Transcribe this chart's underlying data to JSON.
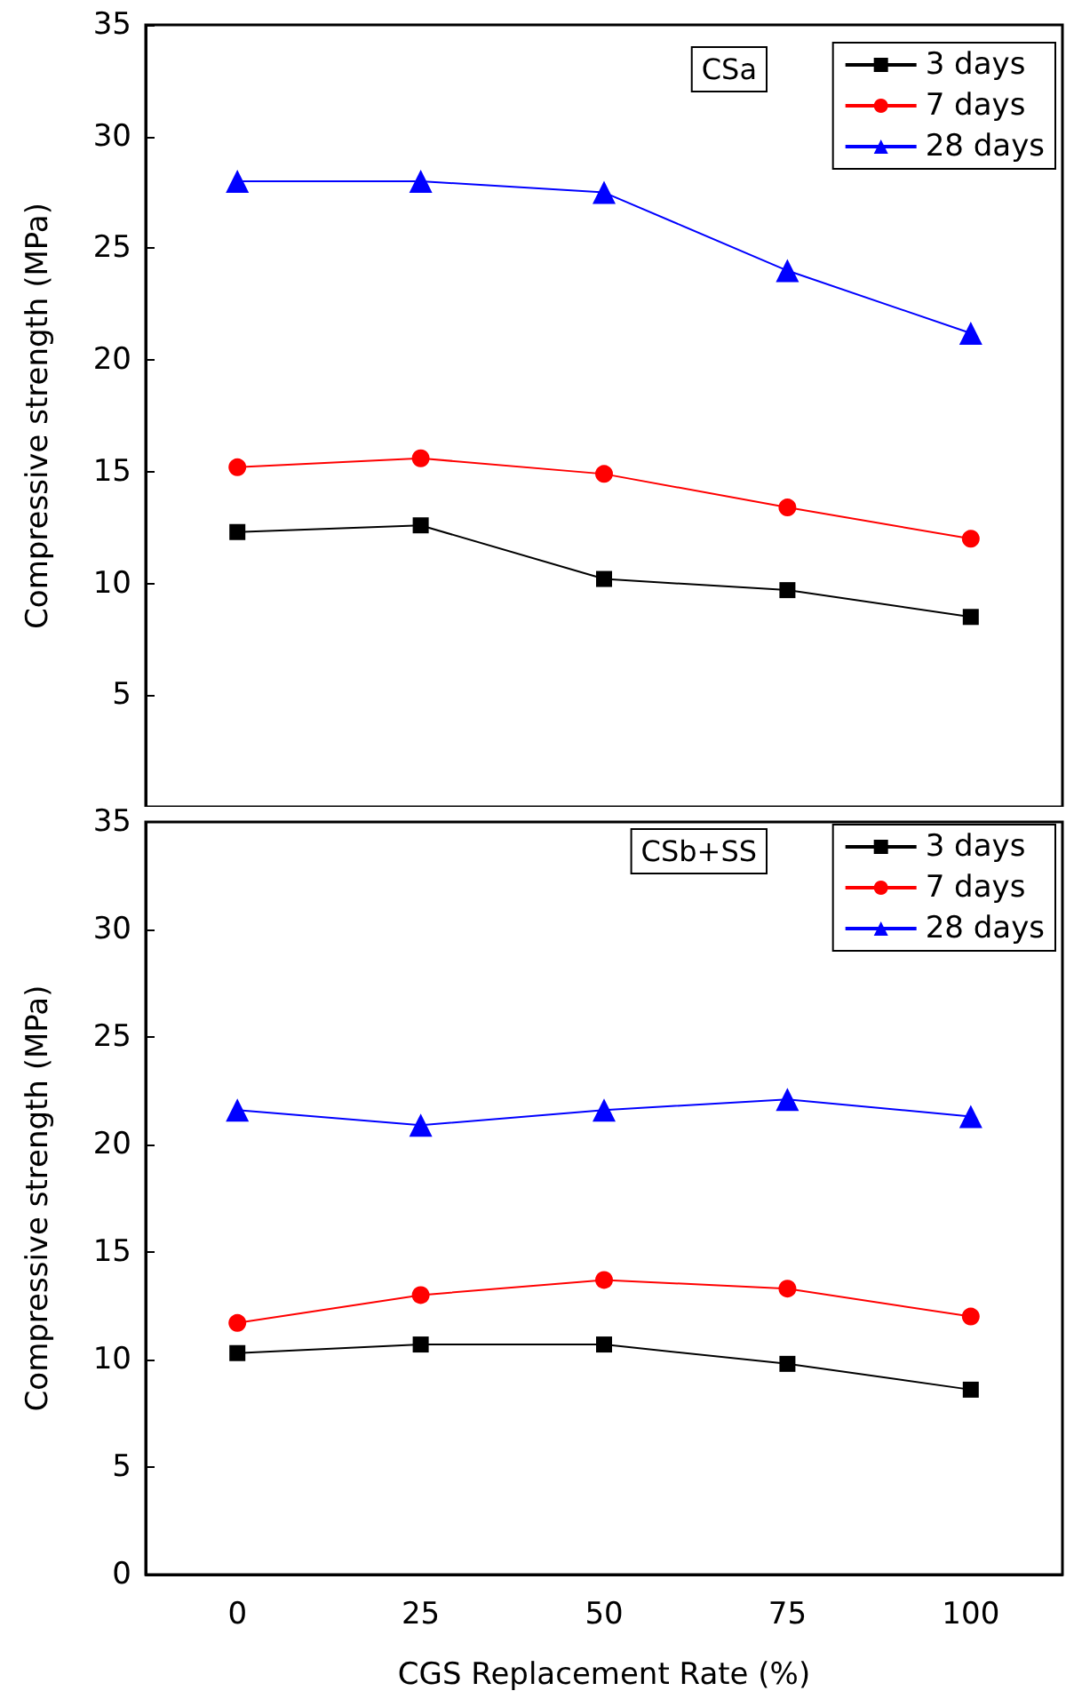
{
  "chart_data": [
    {
      "type": "line",
      "ylabel": "Compressive strength (MPa)",
      "annotations": [
        "CSa"
      ],
      "categories": [
        "0",
        "25",
        "50",
        "75",
        "100"
      ],
      "ylim": [
        0,
        35
      ],
      "yticks": [
        5,
        10,
        15,
        20,
        25,
        30,
        35
      ],
      "tick_labels": "y",
      "legend": "top right",
      "line_style": "solid",
      "series": [
        {
          "name": "3 days",
          "color": "#000000",
          "marker": "square",
          "values": [
            12.3,
            12.6,
            10.2,
            9.7,
            8.5
          ]
        },
        {
          "name": "7 days",
          "color": "#ff0000",
          "marker": "circle",
          "values": [
            15.2,
            15.6,
            14.9,
            13.4,
            12.0
          ]
        },
        {
          "name": "28 days",
          "color": "#0000ff",
          "marker": "triangle",
          "values": [
            28.0,
            28.0,
            27.5,
            24.0,
            21.2
          ]
        }
      ]
    },
    {
      "type": "line",
      "ylabel": "Compressive strength (MPa)",
      "xlabel": "CGS Replacement Rate (%)",
      "annotations": [
        "CSb+SS"
      ],
      "categories": [
        "0",
        "25",
        "50",
        "75",
        "100"
      ],
      "ylim": [
        0,
        35
      ],
      "yticks": [
        0,
        5,
        10,
        15,
        20,
        25,
        30,
        35
      ],
      "legend": "top right",
      "line_style": "solid",
      "series": [
        {
          "name": "3 days",
          "color": "#000000",
          "marker": "square",
          "values": [
            10.3,
            10.7,
            10.7,
            9.8,
            8.6
          ]
        },
        {
          "name": "7 days",
          "color": "#ff0000",
          "marker": "circle",
          "values": [
            11.7,
            13.0,
            13.7,
            13.3,
            12.0
          ]
        },
        {
          "name": "28 days",
          "color": "#0000ff",
          "marker": "triangle",
          "values": [
            21.6,
            20.9,
            21.6,
            22.1,
            21.3
          ]
        }
      ]
    }
  ]
}
